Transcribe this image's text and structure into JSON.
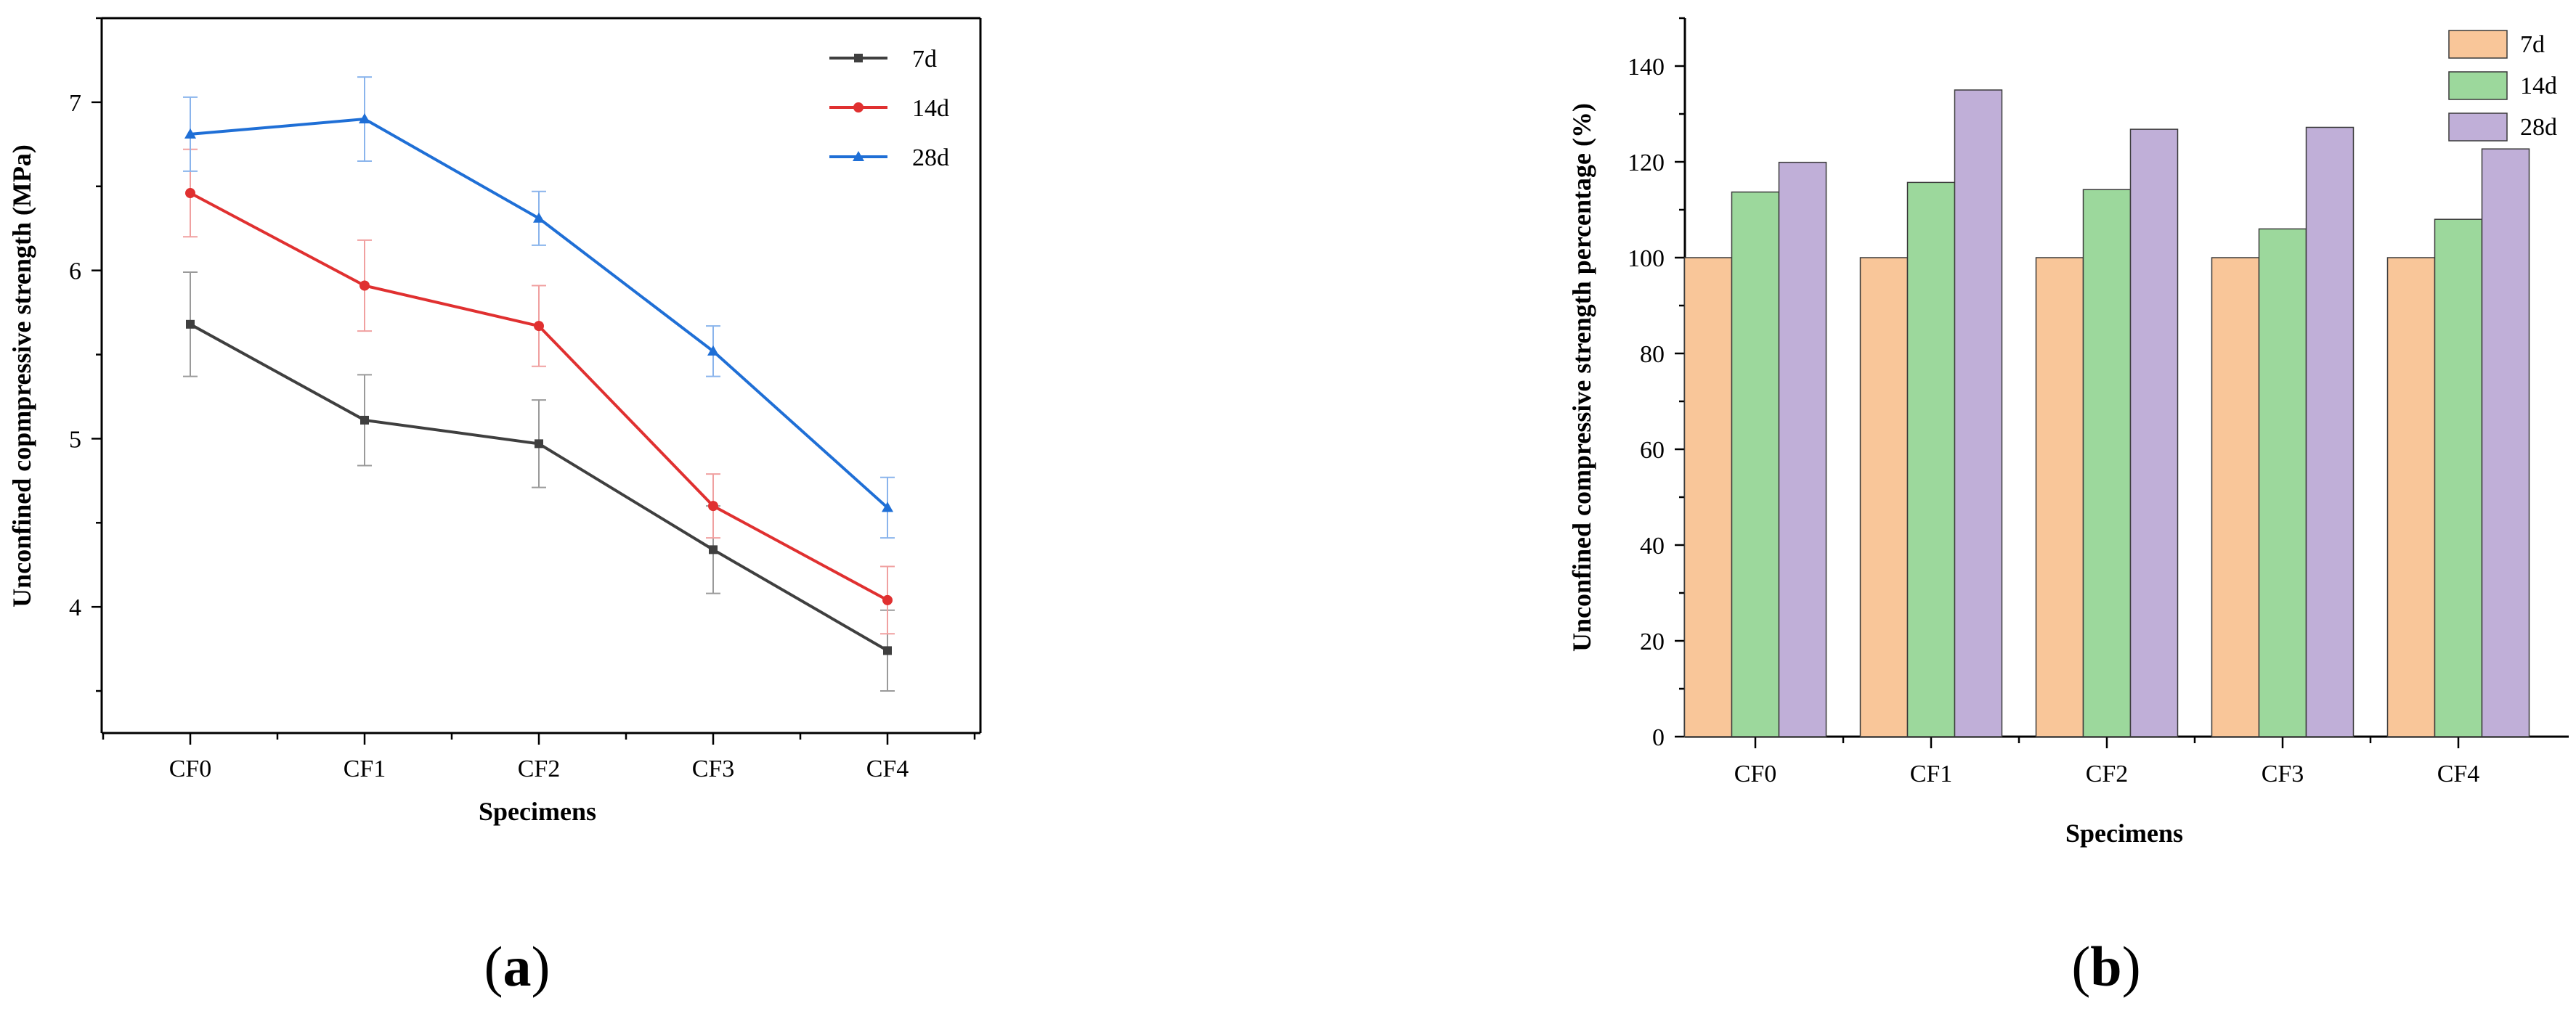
{
  "chart_data": [
    {
      "type": "line",
      "panel_label": "a",
      "categories": [
        "CF0",
        "CF1",
        "CF2",
        "CF3",
        "CF4"
      ],
      "xlabel": "Specimens",
      "ylabel": "Unconfined copmpressive strength (MPa)",
      "ylim": [
        3.25,
        7.5
      ],
      "yticks": [
        4,
        5,
        6,
        7
      ],
      "grid": false,
      "legend_position": "top-right",
      "series": [
        {
          "name": "7d",
          "color": "#3f3f3f",
          "marker": "square",
          "error_color": "#9a9a9a",
          "values": [
            5.68,
            5.11,
            4.97,
            4.34,
            3.74
          ],
          "errors": [
            0.31,
            0.27,
            0.26,
            0.26,
            0.24
          ]
        },
        {
          "name": "14d",
          "color": "#e03030",
          "marker": "circle",
          "error_color": "#f0a0a0",
          "values": [
            6.46,
            5.91,
            5.67,
            4.6,
            4.04
          ],
          "errors": [
            0.26,
            0.27,
            0.24,
            0.19,
            0.2
          ]
        },
        {
          "name": "28d",
          "color": "#1f6fd6",
          "marker": "triangle",
          "error_color": "#8ab4ec",
          "values": [
            6.81,
            6.9,
            6.31,
            5.52,
            4.59
          ],
          "errors": [
            0.22,
            0.25,
            0.16,
            0.15,
            0.18
          ]
        }
      ]
    },
    {
      "type": "bar",
      "panel_label": "b",
      "categories": [
        "CF0",
        "CF1",
        "CF2",
        "CF3",
        "CF4"
      ],
      "xlabel": "Specimens",
      "ylabel": "Unconfined compressive strength percentage (%)",
      "ylim": [
        0,
        150
      ],
      "yticks": [
        0,
        20,
        40,
        60,
        80,
        100,
        120,
        140
      ],
      "grid": false,
      "legend_position": "top-right",
      "series": [
        {
          "name": "7d",
          "color": "#f9c699",
          "values": [
            100,
            100,
            100,
            100,
            100
          ]
        },
        {
          "name": "14d",
          "color": "#9cd89c",
          "values": [
            113.7,
            115.7,
            114.2,
            106.0,
            108.0
          ]
        },
        {
          "name": "28d",
          "color": "#c0afd8",
          "values": [
            119.9,
            135.0,
            126.8,
            127.2,
            122.7
          ]
        }
      ]
    }
  ]
}
